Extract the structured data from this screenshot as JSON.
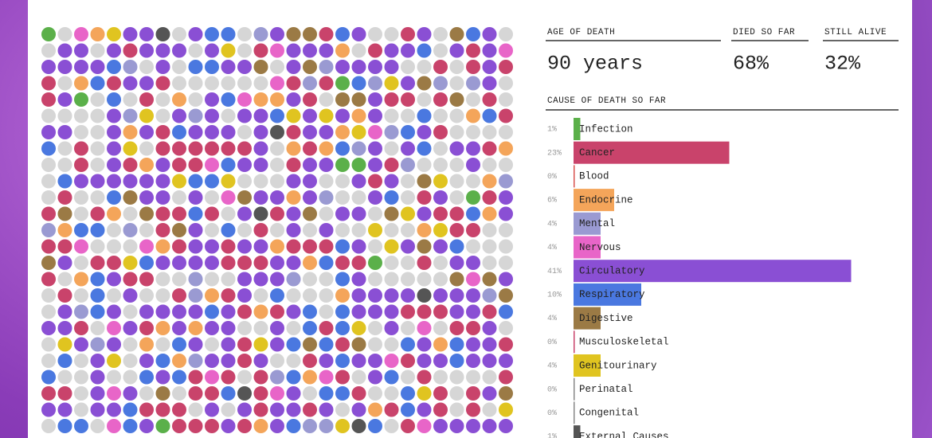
{
  "stats": {
    "age_label": "AGE OF DEATH",
    "age_value": "90 years",
    "died_label": "DIED SO FAR",
    "died_value": "68%",
    "alive_label": "STILL ALIVE",
    "alive_value": "32%",
    "cause_label": "CAUSE OF DEATH SO FAR"
  },
  "chart_data": {
    "type": "bar",
    "categories": [
      "Infection",
      "Cancer",
      "Blood",
      "Endocrine",
      "Mental",
      "Nervous",
      "Circulatory",
      "Respiratory",
      "Digestive",
      "Musculoskeletal",
      "Genitourinary",
      "Perinatal",
      "Congenital",
      "External Causes"
    ],
    "values": [
      1,
      23,
      0,
      6,
      4,
      4,
      41,
      10,
      4,
      0,
      4,
      0,
      0,
      1
    ],
    "value_labels": [
      "1%",
      "23%",
      "0%",
      "6%",
      "4%",
      "4%",
      "41%",
      "10%",
      "4%",
      "0%",
      "4%",
      "0%",
      "0%",
      "1%"
    ],
    "colors": [
      "#5bb04a",
      "#c9436b",
      "#d9534f",
      "#f4a55a",
      "#9a9ad2",
      "#e865c8",
      "#8a4fd4",
      "#4a78e0",
      "#9b7a45",
      "#c9436b",
      "#e0c420",
      "#888888",
      "#888888",
      "#555555"
    ]
  }
}
